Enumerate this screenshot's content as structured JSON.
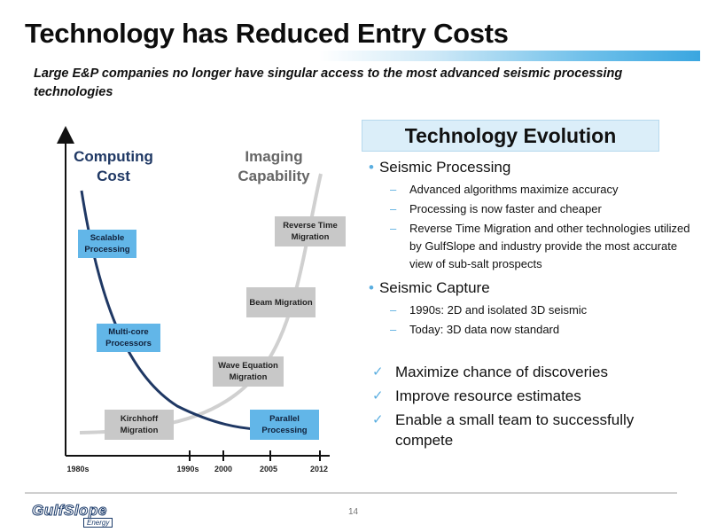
{
  "slide": {
    "title": "Technology has Reduced Entry Costs",
    "subtitle": "Large E&P companies no longer have singular access to the most advanced seismic processing technologies",
    "page_number": "14"
  },
  "diagram": {
    "left_axis_label": "Computing\nCost",
    "right_axis_label": "Imaging\nCapability",
    "years": [
      "1980s",
      "1990s",
      "2000",
      "2005",
      "2012"
    ],
    "boxes": {
      "scalable": "Scalable Processing",
      "multicore": "Multi-core Processors",
      "parallel": "Parallel Processing",
      "kirchhoff": "Kirchhoff Migration",
      "wave": "Wave Equation Migration",
      "beam": "Beam Migration",
      "rtm": "Reverse Time Migration"
    },
    "colors": {
      "cost_curve": "#1f3864",
      "capability_curve": "#d0d0d0",
      "blue_box": "#62b6e8",
      "gray_box": "#c8c8c8"
    }
  },
  "evolution": {
    "heading": "Technology Evolution",
    "sections": [
      {
        "title": "Seismic Processing",
        "items": [
          "Advanced algorithms maximize accuracy",
          "Processing is now faster and cheaper",
          "Reverse Time Migration and other technologies utilized by GulfSlope and industry provide the most accurate view of sub-salt prospects"
        ]
      },
      {
        "title": "Seismic Capture",
        "items": [
          "1990s:  2D and isolated 3D seismic",
          "Today:  3D data now standard"
        ]
      }
    ],
    "checks": [
      "Maximize chance of discoveries",
      "Improve resource estimates",
      "Enable a small team to successfully compete"
    ]
  },
  "logo": {
    "main": "GulfSlope",
    "sub": "Energy"
  }
}
